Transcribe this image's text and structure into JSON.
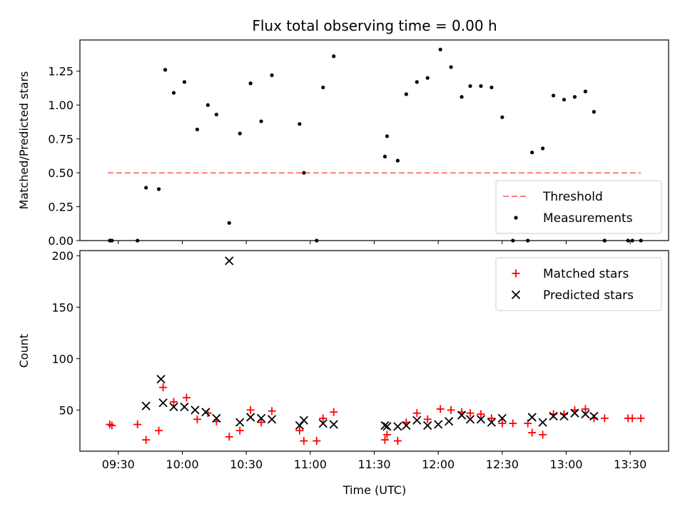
{
  "chart_data": {
    "title": "Flux total observing time = 0.00 h",
    "xlabel": "Time (UTC)",
    "x_ticks": [
      "09:30",
      "10:00",
      "10:30",
      "11:00",
      "11:30",
      "12:00",
      "12:30",
      "13:00",
      "13:30"
    ],
    "panels": [
      {
        "type": "scatter",
        "ylabel": "Matched/Predicted stars",
        "ylim": [
          0,
          1.48
        ],
        "y_ticks": [
          "0.00",
          "0.25",
          "0.50",
          "0.75",
          "1.00",
          "1.25"
        ],
        "legend_position": "lower-right",
        "threshold": {
          "name": "Threshold",
          "value": 0.5,
          "color": "#ff7f7f",
          "x_range": [
            "09:25",
            "13:35"
          ]
        },
        "series": [
          {
            "name": "Measurements",
            "color": "#000000",
            "points": [
              [
                "09:26",
                0
              ],
              [
                "09:27",
                0
              ],
              [
                "09:39",
                0
              ],
              [
                "09:43",
                0.39
              ],
              [
                "09:49",
                0.38
              ],
              [
                "09:52",
                1.26
              ],
              [
                "09:56",
                1.09
              ],
              [
                "10:01",
                1.17
              ],
              [
                "10:07",
                0.82
              ],
              [
                "10:12",
                1.0
              ],
              [
                "10:16",
                0.93
              ],
              [
                "10:22",
                0.13
              ],
              [
                "10:27",
                0.79
              ],
              [
                "10:32",
                1.16
              ],
              [
                "10:37",
                0.88
              ],
              [
                "10:42",
                1.22
              ],
              [
                "10:55",
                0.86
              ],
              [
                "10:57",
                0.5
              ],
              [
                "11:03",
                0
              ],
              [
                "11:06",
                1.13
              ],
              [
                "11:11",
                1.36
              ],
              [
                "11:35",
                0.62
              ],
              [
                "11:36",
                0.77
              ],
              [
                "11:41",
                0.59
              ],
              [
                "11:45",
                1.08
              ],
              [
                "11:50",
                1.17
              ],
              [
                "11:55",
                1.2
              ],
              [
                "12:01",
                1.41
              ],
              [
                "12:06",
                1.28
              ],
              [
                "12:11",
                1.06
              ],
              [
                "12:15",
                1.14
              ],
              [
                "12:20",
                1.14
              ],
              [
                "12:25",
                1.13
              ],
              [
                "12:30",
                0.91
              ],
              [
                "12:35",
                0
              ],
              [
                "12:42",
                0
              ],
              [
                "12:44",
                0.65
              ],
              [
                "12:49",
                0.68
              ],
              [
                "12:54",
                1.07
              ],
              [
                "12:59",
                1.04
              ],
              [
                "13:04",
                1.06
              ],
              [
                "13:09",
                1.1
              ],
              [
                "13:13",
                0.95
              ],
              [
                "13:18",
                0
              ],
              [
                "13:29",
                0
              ],
              [
                "13:31",
                0
              ],
              [
                "13:35",
                0
              ]
            ]
          }
        ]
      },
      {
        "type": "scatter",
        "ylabel": "Count",
        "ylim": [
          10,
          205
        ],
        "y_ticks": [
          "50",
          "100",
          "150",
          "200"
        ],
        "legend_position": "upper-right",
        "series": [
          {
            "name": "Matched stars",
            "color": "#ff0000",
            "marker": "+",
            "points": [
              [
                "09:26",
                36
              ],
              [
                "09:27",
                35
              ],
              [
                "09:39",
                36
              ],
              [
                "09:43",
                21
              ],
              [
                "09:49",
                30
              ],
              [
                "09:51",
                72
              ],
              [
                "09:56",
                58
              ],
              [
                "10:02",
                62
              ],
              [
                "10:07",
                41
              ],
              [
                "10:12",
                47
              ],
              [
                "10:16",
                39
              ],
              [
                "10:22",
                24
              ],
              [
                "10:27",
                30
              ],
              [
                "10:32",
                50
              ],
              [
                "10:37",
                38
              ],
              [
                "10:42",
                49
              ],
              [
                "10:55",
                30
              ],
              [
                "10:57",
                20
              ],
              [
                "11:03",
                20
              ],
              [
                "11:06",
                42
              ],
              [
                "11:11",
                48
              ],
              [
                "11:35",
                21
              ],
              [
                "11:36",
                26
              ],
              [
                "11:41",
                20
              ],
              [
                "11:45",
                38
              ],
              [
                "11:50",
                47
              ],
              [
                "11:55",
                41
              ],
              [
                "12:01",
                51
              ],
              [
                "12:06",
                50
              ],
              [
                "12:11",
                48
              ],
              [
                "12:15",
                47
              ],
              [
                "12:20",
                46
              ],
              [
                "12:25",
                42
              ],
              [
                "12:30",
                37
              ],
              [
                "12:35",
                37
              ],
              [
                "12:42",
                37
              ],
              [
                "12:44",
                28
              ],
              [
                "12:49",
                26
              ],
              [
                "12:54",
                46
              ],
              [
                "12:59",
                46
              ],
              [
                "13:04",
                50
              ],
              [
                "13:09",
                51
              ],
              [
                "13:13",
                42
              ],
              [
                "13:18",
                42
              ],
              [
                "13:29",
                42
              ],
              [
                "13:31",
                42
              ],
              [
                "13:35",
                42
              ]
            ]
          },
          {
            "name": "Predicted stars",
            "color": "#000000",
            "marker": "x",
            "points": [
              [
                "09:43",
                54
              ],
              [
                "09:50",
                80
              ],
              [
                "09:51",
                57
              ],
              [
                "09:56",
                53
              ],
              [
                "10:01",
                53
              ],
              [
                "10:06",
                50
              ],
              [
                "10:11",
                48
              ],
              [
                "10:16",
                42
              ],
              [
                "10:22",
                195
              ],
              [
                "10:27",
                38
              ],
              [
                "10:32",
                43
              ],
              [
                "10:37",
                42
              ],
              [
                "10:42",
                41
              ],
              [
                "10:55",
                35
              ],
              [
                "10:57",
                40
              ],
              [
                "11:06",
                37
              ],
              [
                "11:11",
                36
              ],
              [
                "11:35",
                35
              ],
              [
                "11:36",
                34
              ],
              [
                "11:41",
                34
              ],
              [
                "11:45",
                35
              ],
              [
                "11:50",
                40
              ],
              [
                "11:55",
                35
              ],
              [
                "12:00",
                36
              ],
              [
                "12:05",
                39
              ],
              [
                "12:11",
                45
              ],
              [
                "12:15",
                41
              ],
              [
                "12:20",
                41
              ],
              [
                "12:25",
                38
              ],
              [
                "12:30",
                42
              ],
              [
                "12:44",
                43
              ],
              [
                "12:49",
                38
              ],
              [
                "12:54",
                44
              ],
              [
                "12:59",
                44
              ],
              [
                "13:04",
                47
              ],
              [
                "13:09",
                46
              ],
              [
                "13:13",
                44
              ]
            ]
          }
        ]
      }
    ]
  }
}
